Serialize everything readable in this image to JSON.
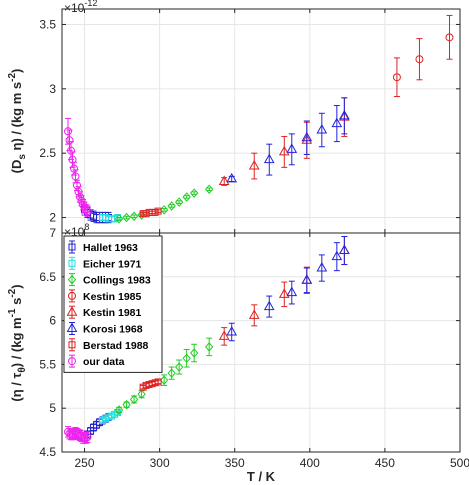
{
  "chart_data": [
    {
      "type": "scatter",
      "panel": "top",
      "ylabel": "(D_s η) / (kg m s^-2)",
      "ylabel_parts": {
        "a": "(D",
        "b": "s",
        "c": " η) / (kg m s",
        "d": "-2",
        "e": ")"
      },
      "exponent_label": "×10",
      "exponent_power": "-12",
      "xlim": [
        235,
        500
      ],
      "ylim": [
        1.88,
        3.62
      ],
      "yticks": [
        2,
        2.5,
        3,
        3.5
      ],
      "ytick_labels": [
        "2",
        "2.5",
        "3",
        "3.5"
      ],
      "grid": true,
      "series": [
        {
          "name": "Hallet 1963",
          "color": "#2222cc",
          "marker": "square",
          "x": [
            250,
            252,
            254,
            256,
            258,
            260,
            262,
            264,
            266
          ],
          "y": [
            2.06,
            2.04,
            2.02,
            2.01,
            2.0,
            2.0,
            2.0,
            2.0,
            2.0
          ],
          "err": [
            0.04,
            0.04,
            0.04,
            0.04,
            0.04,
            0.04,
            0.04,
            0.04,
            0.04
          ]
        },
        {
          "name": "Eicher 1971",
          "color": "#22dddd",
          "marker": "square",
          "x": [
            262,
            264,
            266,
            268,
            270,
            272
          ],
          "y": [
            2.0,
            2.0,
            1.99,
            1.99,
            1.99,
            2.0
          ],
          "err": [
            0.02,
            0.02,
            0.02,
            0.02,
            0.02,
            0.02
          ]
        },
        {
          "name": "Collings 1983",
          "color": "#22cc22",
          "marker": "diamond",
          "x": [
            273,
            278,
            283,
            288,
            303,
            308,
            313,
            318,
            323,
            333
          ],
          "y": [
            1.99,
            2.0,
            2.01,
            2.02,
            2.06,
            2.09,
            2.12,
            2.16,
            2.19,
            2.22
          ],
          "err": [
            0.01,
            0.01,
            0.01,
            0.01,
            0.01,
            0.01,
            0.01,
            0.01,
            0.01,
            0.01
          ]
        },
        {
          "name": "Kestin 1985",
          "color": "#dd2222",
          "marker": "circle",
          "x": [
            458,
            473,
            493
          ],
          "y": [
            3.09,
            3.23,
            3.4
          ],
          "err": [
            0.15,
            0.16,
            0.17
          ]
        },
        {
          "name": "Kestin 1981",
          "color": "#dd2222",
          "marker": "triangle",
          "x": [
            343,
            363,
            383,
            398,
            423
          ],
          "y": [
            2.28,
            2.4,
            2.51,
            2.6,
            2.78
          ],
          "err": [
            0.03,
            0.1,
            0.12,
            0.14,
            0.15
          ]
        },
        {
          "name": "Korosi 1968",
          "color": "#2222dd",
          "marker": "triangle",
          "x": [
            348,
            373,
            388,
            398,
            408,
            418,
            423
          ],
          "y": [
            2.3,
            2.45,
            2.53,
            2.62,
            2.68,
            2.73,
            2.79
          ],
          "err": [
            0.02,
            0.12,
            0.12,
            0.13,
            0.13,
            0.14,
            0.14
          ]
        },
        {
          "name": "Berstad 1988",
          "color": "#dd2222",
          "marker": "square",
          "x": [
            289,
            291,
            293,
            295,
            297,
            299
          ],
          "y": [
            2.03,
            2.03,
            2.04,
            2.04,
            2.04,
            2.05
          ],
          "err": [
            0.01,
            0.01,
            0.01,
            0.01,
            0.01,
            0.01
          ]
        },
        {
          "name": "our data",
          "color": "#ee22ee",
          "marker": "circle",
          "x": [
            239,
            240,
            241,
            242,
            243,
            244,
            245,
            246,
            247,
            248,
            249,
            250,
            251,
            252
          ],
          "y": [
            2.67,
            2.6,
            2.52,
            2.45,
            2.38,
            2.32,
            2.25,
            2.2,
            2.16,
            2.13,
            2.1,
            2.08,
            2.06,
            2.05
          ],
          "err": [
            0.1,
            0.08,
            0.07,
            0.06,
            0.05,
            0.05,
            0.04,
            0.04,
            0.04,
            0.04,
            0.04,
            0.04,
            0.04,
            0.04
          ]
        }
      ]
    },
    {
      "type": "scatter",
      "panel": "bottom",
      "xlabel": "T / K",
      "ylabel": "(η / τ_θ) / (kg m^-1 s^-2)",
      "ylabel_parts": {
        "a": "(η / τ",
        "b": "θ",
        "c": ") / (kg m",
        "d": "-1",
        "e": " s",
        "f": "-2",
        "g": ")"
      },
      "exponent_label": "×10",
      "exponent_power": "8",
      "xlim": [
        235,
        500
      ],
      "ylim": [
        4.5,
        7.0
      ],
      "xticks": [
        250,
        300,
        350,
        400,
        450,
        500
      ],
      "xtick_labels": [
        "250",
        "300",
        "350",
        "400",
        "450",
        "500"
      ],
      "yticks": [
        4.5,
        5,
        5.5,
        6,
        6.5,
        7
      ],
      "ytick_labels": [
        "4.5",
        "5",
        "5.5",
        "6",
        "6.5",
        "7"
      ],
      "grid": true,
      "legend_position": "top-left",
      "series": [
        {
          "name": "Hallet 1963",
          "color": "#2222cc",
          "marker": "square",
          "x": [
            250,
            252,
            254,
            256,
            258,
            260,
            262,
            264,
            266
          ],
          "y": [
            4.66,
            4.7,
            4.74,
            4.78,
            4.81,
            4.84,
            4.86,
            4.88,
            4.9
          ],
          "err": [
            0.04,
            0.04,
            0.04,
            0.04,
            0.04,
            0.04,
            0.04,
            0.04,
            0.04
          ]
        },
        {
          "name": "Eicher 1971",
          "color": "#22dddd",
          "marker": "square",
          "x": [
            262,
            264,
            266,
            268,
            270,
            272
          ],
          "y": [
            4.86,
            4.88,
            4.9,
            4.91,
            4.93,
            4.95
          ],
          "err": [
            0.02,
            0.02,
            0.02,
            0.02,
            0.02,
            0.02
          ]
        },
        {
          "name": "Collings 1983",
          "color": "#22cc22",
          "marker": "diamond",
          "x": [
            273,
            278,
            283,
            288,
            303,
            308,
            313,
            318,
            323,
            333
          ],
          "y": [
            4.98,
            5.04,
            5.1,
            5.16,
            5.32,
            5.4,
            5.47,
            5.57,
            5.63,
            5.7
          ],
          "err": [
            0.03,
            0.03,
            0.04,
            0.04,
            0.06,
            0.07,
            0.08,
            0.1,
            0.1,
            0.1
          ]
        },
        {
          "name": "Kestin 1985",
          "color": "#dd2222",
          "marker": "circle",
          "x": [],
          "y": [],
          "err": []
        },
        {
          "name": "Kestin 1981",
          "color": "#dd2222",
          "marker": "triangle",
          "x": [
            343,
            363,
            383,
            398,
            423
          ],
          "y": [
            5.82,
            6.06,
            6.3,
            6.46,
            6.8
          ],
          "err": [
            0.1,
            0.12,
            0.14,
            0.15,
            0.16
          ]
        },
        {
          "name": "Korosi 1968",
          "color": "#2222dd",
          "marker": "triangle",
          "x": [
            348,
            373,
            388,
            398,
            408,
            418,
            423
          ],
          "y": [
            5.87,
            6.16,
            6.32,
            6.46,
            6.6,
            6.73,
            6.8
          ],
          "err": [
            0.1,
            0.12,
            0.13,
            0.14,
            0.15,
            0.16,
            0.16
          ]
        },
        {
          "name": "Berstad 1988",
          "color": "#dd2222",
          "marker": "square",
          "x": [
            289,
            291,
            293,
            295,
            297,
            299
          ],
          "y": [
            5.24,
            5.26,
            5.27,
            5.28,
            5.29,
            5.3
          ],
          "err": [
            0.02,
            0.02,
            0.02,
            0.02,
            0.02,
            0.02
          ]
        },
        {
          "name": "our data",
          "color": "#ee22ee",
          "marker": "circle",
          "x": [
            239,
            240,
            241,
            242,
            243,
            244,
            245,
            246,
            247,
            248,
            249,
            250,
            251,
            252
          ],
          "y": [
            4.73,
            4.71,
            4.7,
            4.7,
            4.71,
            4.72,
            4.71,
            4.7,
            4.69,
            4.68,
            4.66,
            4.66,
            4.66,
            4.67
          ],
          "err": [
            0.06,
            0.06,
            0.06,
            0.06,
            0.06,
            0.06,
            0.06,
            0.06,
            0.06,
            0.06,
            0.06,
            0.06,
            0.06,
            0.06
          ]
        }
      ]
    }
  ]
}
